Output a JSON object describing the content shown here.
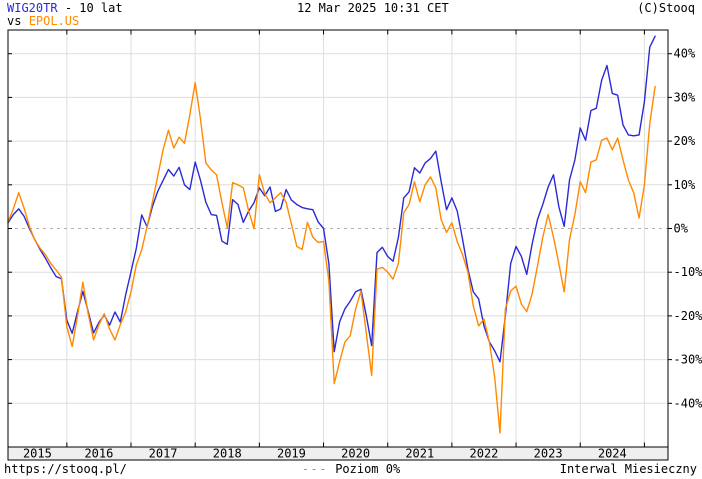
{
  "header": {
    "symbol": "WIG20TR",
    "range_suffix": "- 10 lat",
    "vs_label": "vs",
    "compare_symbol": "EPOL.US",
    "timestamp": "12 Mar 2025 10:31 CET",
    "copyright": "(C)Stooq"
  },
  "footer": {
    "url": "https://stooq.pl/",
    "zero_line_dashes": "---",
    "zero_line_label": "Poziom 0%",
    "interval_label": "Interwal Miesieczny"
  },
  "colors": {
    "primary": "#2a2ad6",
    "compare": "#ff8a00",
    "grid": "#dedede",
    "zero_line": "#b0b0b0",
    "frame": "#000000",
    "axis_band_bg": "#efefef",
    "text": "#000000"
  },
  "chart_data": {
    "type": "line",
    "title": "WIG20TR vs EPOL.US - 10 lat",
    "interval": "monthly",
    "unit": "percent change",
    "start_month": "2015-02",
    "end_month": "2025-03",
    "grid": true,
    "legend_position": "none",
    "zero_line_dashed": true,
    "ylim": [
      -50,
      45.5
    ],
    "y_ticks": [
      40,
      30,
      20,
      10,
      0,
      -10,
      -20,
      -30,
      -40
    ],
    "y_tick_labels": [
      "40%",
      "30%",
      "20%",
      "10%",
      "0%",
      "-10%",
      "-20%",
      "-30%",
      "-40%"
    ],
    "x_year_labels": [
      "2015",
      "2016",
      "2017",
      "2018",
      "2019",
      "2020",
      "2021",
      "2022",
      "2023",
      "2024"
    ],
    "series": [
      {
        "name": "WIG20TR",
        "color_key": "primary",
        "values": [
          1.3,
          3.2,
          4.5,
          2.8,
          0.0,
          -2.5,
          -4.8,
          -6.8,
          -9.0,
          -11.0,
          -11.5,
          -21.0,
          -24.0,
          -19.0,
          -14.4,
          -19.0,
          -23.9,
          -21.5,
          -19.8,
          -22.1,
          -19.1,
          -21.4,
          -15.2,
          -9.9,
          -4.5,
          3.1,
          0.4,
          5.0,
          8.5,
          11.0,
          13.5,
          12.0,
          14.0,
          10.0,
          8.9,
          15.2,
          11.0,
          6.0,
          3.2,
          3.0,
          -2.9,
          -3.6,
          6.6,
          5.5,
          1.4,
          4.0,
          5.9,
          9.3,
          7.5,
          9.5,
          3.9,
          4.5,
          8.9,
          6.5,
          5.5,
          4.8,
          4.5,
          4.3,
          1.5,
          0.0,
          -8.0,
          -28.2,
          -21.4,
          -18.4,
          -16.6,
          -14.5,
          -13.9,
          -20.0,
          -26.8,
          -5.5,
          -4.3,
          -6.4,
          -7.5,
          -2.0,
          7.0,
          8.4,
          13.9,
          12.7,
          15.0,
          16.0,
          17.7,
          10.7,
          4.3,
          7.0,
          4.0,
          -2.5,
          -9.3,
          -14.5,
          -16.1,
          -22.3,
          -25.9,
          -28.0,
          -30.5,
          -20.0,
          -8.0,
          -4.1,
          -6.4,
          -10.5,
          -3.6,
          2.0,
          5.5,
          9.5,
          12.3,
          5.0,
          0.5,
          11.1,
          15.7,
          23.0,
          20.2,
          27.0,
          27.5,
          33.9,
          37.3,
          30.9,
          30.5,
          23.7,
          21.4,
          21.2,
          21.4,
          29.0,
          41.5,
          44.0
        ]
      },
      {
        "name": "EPOL.US",
        "color_key": "compare",
        "values": [
          1.5,
          4.5,
          8.2,
          4.7,
          0.5,
          -2.6,
          -4.5,
          -6.0,
          -8.0,
          -9.5,
          -11.1,
          -22.5,
          -27.0,
          -20.0,
          -12.3,
          -19.5,
          -25.5,
          -22.0,
          -19.5,
          -23.0,
          -25.5,
          -22.0,
          -19.1,
          -14.5,
          -8.3,
          -4.9,
          0.4,
          6.0,
          12.0,
          18.0,
          22.5,
          18.4,
          20.9,
          19.5,
          26.0,
          33.4,
          25.0,
          15.0,
          13.4,
          12.3,
          5.9,
          0.2,
          10.5,
          10.0,
          9.3,
          4.0,
          0.0,
          12.3,
          8.0,
          5.9,
          7.0,
          8.2,
          6.0,
          1.0,
          -4.1,
          -4.8,
          1.4,
          -2.0,
          -3.2,
          -3.0,
          -12.0,
          -35.5,
          -30.5,
          -26.0,
          -24.5,
          -18.4,
          -14.3,
          -24.0,
          -33.6,
          -9.3,
          -8.9,
          -10.0,
          -11.6,
          -8.0,
          3.6,
          5.5,
          10.7,
          6.1,
          10.0,
          11.8,
          9.3,
          2.0,
          -0.9,
          1.3,
          -3.0,
          -6.0,
          -10.0,
          -17.7,
          -22.3,
          -20.7,
          -25.9,
          -34.0,
          -46.8,
          -18.4,
          -14.3,
          -13.2,
          -17.3,
          -19.0,
          -15.0,
          -8.6,
          -2.0,
          3.2,
          -2.0,
          -8.0,
          -14.5,
          -2.5,
          3.2,
          10.7,
          8.2,
          15.2,
          15.7,
          20.2,
          20.7,
          18.0,
          20.7,
          15.7,
          11.1,
          8.2,
          2.4,
          10.0,
          24.0,
          32.5
        ]
      }
    ]
  }
}
